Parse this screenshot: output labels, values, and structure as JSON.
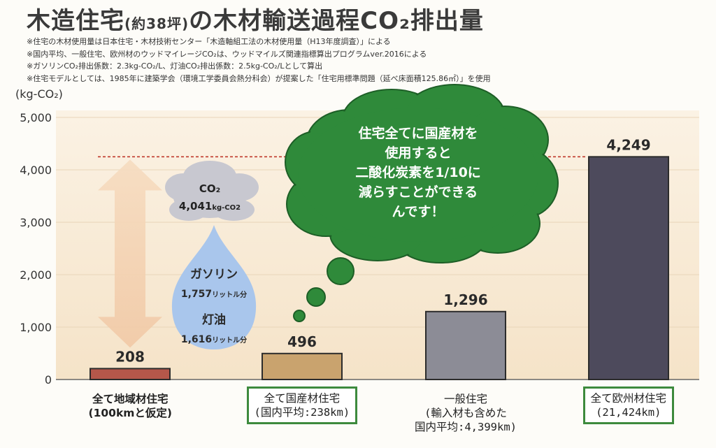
{
  "header": {
    "title_pre": "木造住宅",
    "title_small": "(約38坪)",
    "title_post": "の木材輸送過程CO₂排出量"
  },
  "notes": [
    "※住宅の木材使用量は日本住宅・木材技術センター「木造軸組工法の木材使用量（H13年度調査）」による",
    "※国内平均、一般住宅、欧州材のウッドマイレージCO₂は、ウッドマイルズ関連指標算出プログラムver.2016による",
    "※ガソリンCO₂排出係数：2.3kg-CO₂/L、灯油CO₂排出係数：2.5kg-CO₂/Lとして算出",
    "※住宅モデルとしては、1985年に建築学会（環境工学委員会熱分科会）が提案した「住宅用標準問題（延べ床面積125.86㎡）」を使用"
  ],
  "chart_data": {
    "type": "bar",
    "ylabel": "(kg-CO₂)",
    "ylim": [
      0,
      5000
    ],
    "yticks": [
      0,
      1000,
      2000,
      3000,
      4000,
      5000
    ],
    "ytick_labels": [
      "0",
      "1,000",
      "2,000",
      "3,000",
      "4,000",
      "5,000"
    ],
    "values": [
      208,
      496,
      1296,
      4249
    ],
    "value_labels": [
      "208",
      "496",
      "1,296",
      "4,249"
    ],
    "bar_colors": [
      "#b5574a",
      "#c9a36e",
      "#8c8c96",
      "#4d4a5c"
    ],
    "categories": [
      [
        "全て地域材住宅",
        "(100kmと仮定)"
      ],
      [
        "全て国産材住宅",
        "(国内平均:238km)"
      ],
      [
        "一般住宅",
        "(輸入材も含めた",
        "国内平均:4,399km)"
      ],
      [
        "全て欧州材住宅",
        "(21,424km)"
      ]
    ],
    "category_boxed": [
      false,
      true,
      false,
      true
    ],
    "reference_line": 4249,
    "difference_annotation": {
      "co2_label": "CO₂",
      "co2_value": "4,041",
      "co2_unit": "kg-CO2",
      "gasoline_label": "ガソリン",
      "gasoline_value": "1,757",
      "gasoline_unit": "リットル分",
      "kerosene_label": "灯油",
      "kerosene_value": "1,616",
      "kerosene_unit": "リットル分"
    },
    "callout": [
      "住宅全てに国産材を",
      "使用すると",
      "二酸化炭素を1/10に",
      "減らすことができる",
      "んです！"
    ]
  },
  "colors": {
    "bubble": "#2f8a3a",
    "bubble_edge": "#1d5e26",
    "drop": "#a9c6ec",
    "cloud": "#c8c8d0",
    "arrow": "#f4d2b0",
    "ref_line": "#c0392b",
    "box_border": "#3d8a3d"
  }
}
